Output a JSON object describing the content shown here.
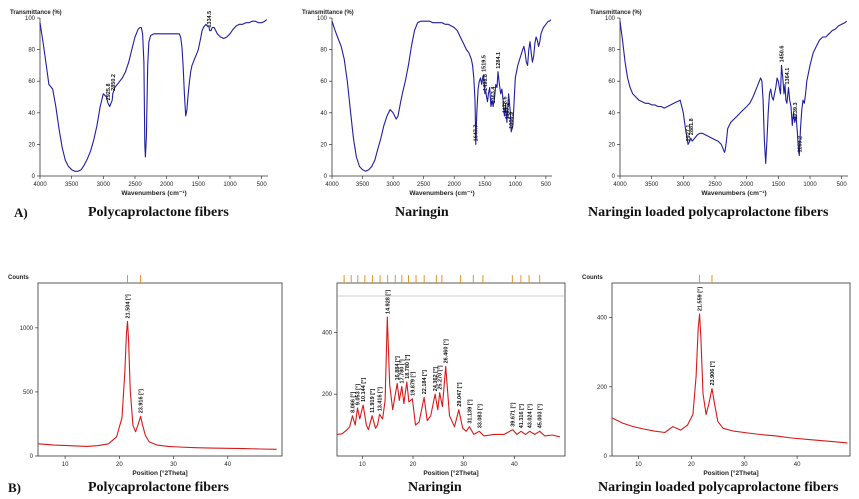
{
  "figure": {
    "panel_a_label": "A)",
    "panel_b_label": "B)"
  },
  "chart_data": [
    {
      "type": "line",
      "caption": "Polycaprolactone fibers",
      "xlabel": "Wavenumbers (cm⁻¹)",
      "ylabel": "Transmittance (%)",
      "xlim": [
        4000,
        400
      ],
      "ylim": [
        0,
        100
      ],
      "xticks": [
        4000,
        3500,
        3000,
        2500,
        2000,
        1500,
        1000,
        500
      ],
      "yticks": [
        0,
        20,
        40,
        60,
        80,
        100
      ],
      "color": "#1f1f9e",
      "x": [
        4000,
        3950,
        3900,
        3860,
        3800,
        3750,
        3700,
        3650,
        3600,
        3550,
        3500,
        3450,
        3400,
        3350,
        3300,
        3250,
        3200,
        3150,
        3100,
        3050,
        3000,
        2950,
        2925.8,
        2900,
        2860,
        2850.2,
        2820,
        2780,
        2740,
        2700,
        2650,
        2600,
        2550,
        2500,
        2450,
        2420,
        2400,
        2380,
        2360,
        2345,
        2335,
        2320,
        2300,
        2280,
        2250,
        2200,
        2150,
        2100,
        2050,
        2000,
        1950,
        1900,
        1850,
        1800,
        1780,
        1760,
        1740,
        1720,
        1700,
        1680,
        1660,
        1640,
        1620,
        1600,
        1580,
        1560,
        1540,
        1520,
        1500,
        1480,
        1460,
        1440,
        1420,
        1400,
        1380,
        1360,
        1334.5,
        1320,
        1300,
        1280,
        1250,
        1200,
        1150,
        1100,
        1050,
        1000,
        950,
        900,
        850,
        800,
        750,
        700,
        650,
        600,
        550,
        500,
        450,
        420
      ],
      "y": [
        97,
        84,
        70,
        58,
        55,
        44,
        30,
        18,
        10,
        6,
        4,
        3,
        3,
        4,
        7,
        11,
        16,
        23,
        32,
        44,
        52,
        50,
        46,
        44,
        48,
        52,
        56,
        58,
        60,
        62,
        66,
        72,
        80,
        88,
        93,
        94,
        94,
        90,
        72,
        20,
        12,
        25,
        70,
        85,
        89,
        90,
        90,
        90,
        90,
        90,
        90,
        90,
        90,
        90,
        88,
        82,
        70,
        52,
        38,
        42,
        52,
        60,
        66,
        70,
        72,
        74,
        76,
        78,
        80,
        84,
        88,
        92,
        94,
        95,
        96,
        95,
        95,
        92,
        92,
        94,
        94,
        90,
        88,
        87,
        88,
        90,
        93,
        95,
        96,
        96,
        97,
        97,
        98,
        98,
        97,
        97,
        98,
        99
      ],
      "annotations": [
        {
          "x": 2925.8,
          "y": 46,
          "text": "2925.8"
        },
        {
          "x": 2850.2,
          "y": 52,
          "text": "2850.2"
        },
        {
          "x": 1334.5,
          "y": 92,
          "text": "1334.5"
        }
      ]
    },
    {
      "type": "line",
      "caption": "Naringin",
      "xlabel": "Wavenumbers (cm⁻¹)",
      "ylabel": "Transmittance (%)",
      "xlim": [
        4000,
        400
      ],
      "ylim": [
        0,
        100
      ],
      "xticks": [
        4000,
        3500,
        3000,
        2500,
        2000,
        1500,
        1000,
        500
      ],
      "yticks": [
        0,
        20,
        40,
        60,
        80,
        100
      ],
      "color": "#1f1f9e",
      "x": [
        4000,
        3950,
        3900,
        3850,
        3800,
        3750,
        3700,
        3650,
        3600,
        3550,
        3500,
        3450,
        3400,
        3350,
        3300,
        3250,
        3200,
        3150,
        3100,
        3050,
        3000,
        2950,
        2920,
        2900,
        2880,
        2850,
        2800,
        2750,
        2700,
        2650,
        2600,
        2550,
        2500,
        2450,
        2400,
        2350,
        2300,
        2250,
        2200,
        2150,
        2100,
        2050,
        2000,
        1950,
        1900,
        1850,
        1800,
        1760,
        1720,
        1700,
        1680,
        1660,
        1647.7,
        1630,
        1610,
        1590,
        1570,
        1550,
        1530,
        1519.5,
        1510,
        1498.8,
        1485,
        1470,
        1455,
        1440,
        1420,
        1400,
        1380,
        1363.4,
        1340,
        1320,
        1300,
        1284.1,
        1260,
        1240,
        1220,
        1200,
        1178.6,
        1160,
        1137.2,
        1110,
        1080,
        1066.9,
        1040,
        1000,
        960,
        920,
        880,
        860,
        840,
        820,
        800,
        780,
        760,
        740,
        720,
        700,
        680,
        660,
        640,
        620,
        600,
        580,
        560,
        540,
        520,
        500,
        480,
        460,
        440,
        420
      ],
      "y": [
        98,
        92,
        87,
        82,
        74,
        60,
        42,
        24,
        12,
        6,
        4,
        3,
        4,
        6,
        10,
        17,
        24,
        32,
        38,
        42,
        40,
        36,
        38,
        42,
        46,
        52,
        60,
        70,
        82,
        92,
        97,
        98,
        98,
        98,
        98,
        97,
        97,
        97,
        97,
        96,
        96,
        95,
        94,
        92,
        88,
        84,
        80,
        78,
        74,
        70,
        62,
        48,
        20,
        40,
        55,
        60,
        62,
        58,
        63,
        64,
        58,
        52,
        54,
        50,
        47,
        52,
        56,
        44,
        48,
        44,
        50,
        58,
        56,
        66,
        58,
        52,
        55,
        48,
        38,
        45,
        34,
        52,
        40,
        28,
        32,
        62,
        70,
        75,
        80,
        82,
        78,
        72,
        70,
        80,
        85,
        78,
        72,
        76,
        84,
        88,
        86,
        82,
        85,
        90,
        92,
        94,
        95,
        96,
        97,
        98,
        98,
        99
      ],
      "annotations": [
        {
          "x": 1647.7,
          "y": 20,
          "text": "1647.7"
        },
        {
          "x": 1519.5,
          "y": 64,
          "text": "1519.5"
        },
        {
          "x": 1498.8,
          "y": 52,
          "text": "1498.8"
        },
        {
          "x": 1363.4,
          "y": 44,
          "text": "1363.4"
        },
        {
          "x": 1284.1,
          "y": 66,
          "text": "1284.1"
        },
        {
          "x": 1178.6,
          "y": 38,
          "text": "1178.6"
        },
        {
          "x": 1137.2,
          "y": 34,
          "text": "1137.2"
        },
        {
          "x": 1066.9,
          "y": 28,
          "text": "1066.9"
        }
      ]
    },
    {
      "type": "line",
      "caption": "Naringin loaded polycaprolactone fibers",
      "xlabel": "Wavenumbers (cm⁻¹)",
      "ylabel": "Transmittance (%)",
      "xlim": [
        4000,
        400
      ],
      "ylim": [
        0,
        100
      ],
      "xticks": [
        4000,
        3500,
        3000,
        2500,
        2000,
        1500,
        1000,
        500
      ],
      "yticks": [
        0,
        20,
        40,
        60,
        80,
        100
      ],
      "color": "#1f1f9e",
      "x": [
        4000,
        3960,
        3920,
        3880,
        3840,
        3800,
        3750,
        3700,
        3650,
        3600,
        3550,
        3500,
        3450,
        3400,
        3350,
        3300,
        3250,
        3200,
        3150,
        3100,
        3050,
        3000,
        2960,
        2940,
        2927.1,
        2900,
        2881.8,
        2860,
        2820,
        2780,
        2740,
        2700,
        2650,
        2600,
        2550,
        2500,
        2450,
        2400,
        2370,
        2350,
        2340,
        2320,
        2300,
        2250,
        2200,
        2150,
        2100,
        2050,
        2000,
        1950,
        1900,
        1850,
        1800,
        1780,
        1760,
        1740,
        1720,
        1700,
        1680,
        1660,
        1640,
        1620,
        1600,
        1580,
        1560,
        1540,
        1520,
        1500,
        1480,
        1465,
        1450.6,
        1430,
        1410,
        1395,
        1380,
        1364.1,
        1340,
        1320,
        1300,
        1280,
        1260,
        1239.3,
        1220,
        1200,
        1180,
        1169.2,
        1150,
        1130,
        1110,
        1090,
        1070,
        1050,
        1000,
        950,
        900,
        850,
        800,
        750,
        700,
        650,
        600,
        550,
        500,
        450,
        420
      ],
      "y": [
        98,
        86,
        72,
        62,
        56,
        52,
        50,
        48,
        47,
        46,
        46,
        45,
        45,
        44,
        44,
        43,
        44,
        45,
        46,
        47,
        48,
        40,
        28,
        24,
        20,
        22,
        24,
        22,
        24,
        26,
        27,
        27,
        26,
        25,
        24,
        23,
        22,
        20,
        17,
        15,
        16,
        22,
        30,
        34,
        36,
        38,
        40,
        42,
        44,
        46,
        50,
        55,
        60,
        62,
        60,
        48,
        22,
        8,
        22,
        40,
        52,
        55,
        50,
        48,
        52,
        56,
        62,
        60,
        55,
        52,
        70,
        62,
        52,
        58,
        48,
        46,
        56,
        48,
        44,
        32,
        40,
        34,
        38,
        28,
        16,
        13,
        30,
        42,
        48,
        46,
        52,
        60,
        70,
        78,
        82,
        86,
        88,
        88,
        90,
        92,
        93,
        95,
        96,
        97,
        98
      ],
      "annotations": [
        {
          "x": 2927.1,
          "y": 20,
          "text": "2927.1"
        },
        {
          "x": 2881.8,
          "y": 24,
          "text": "2881.8"
        },
        {
          "x": 1450.6,
          "y": 70,
          "text": "1450.6"
        },
        {
          "x": 1364.1,
          "y": 56,
          "text": "1364.1"
        },
        {
          "x": 1239.3,
          "y": 34,
          "text": "1239.3"
        },
        {
          "x": 1169.2,
          "y": 13,
          "text": "1169.2"
        }
      ]
    },
    {
      "type": "line",
      "caption": "Polycaprolactone fibers",
      "ylabel": "Counts",
      "xlabel": "Position [°2Theta]",
      "xlim": [
        5,
        50
      ],
      "ylim": [
        0,
        1350
      ],
      "xticks": [
        10,
        20,
        30,
        40
      ],
      "yticks": [
        0,
        500,
        1000
      ],
      "color": "#d61a1a",
      "x": [
        5,
        8,
        11,
        14,
        16,
        18,
        19.5,
        20.5,
        21.0,
        21.3,
        21.504,
        21.7,
        22.0,
        22.5,
        23.0,
        23.5,
        23.916,
        24.3,
        24.8,
        25.5,
        27,
        29,
        31,
        34,
        37,
        40,
        43,
        46,
        49
      ],
      "y": [
        95,
        85,
        80,
        75,
        80,
        95,
        150,
        300,
        650,
        950,
        1050,
        900,
        520,
        240,
        190,
        250,
        310,
        240,
        160,
        110,
        85,
        75,
        70,
        65,
        62,
        60,
        58,
        55,
        52
      ],
      "peak_markers": [
        21.504,
        23.916
      ],
      "annotations": [
        {
          "x": 21.504,
          "y": 1050,
          "text": "21.504 [°]"
        },
        {
          "x": 23.916,
          "y": 310,
          "text": "23.916 [°]"
        }
      ]
    },
    {
      "type": "line",
      "caption": "Naringin",
      "xlabel": "Position [°2Theta]",
      "xlim": [
        5,
        50
      ],
      "ylim": [
        0,
        560
      ],
      "xticks": [
        10,
        20,
        30,
        40
      ],
      "yticks": [
        200,
        400
      ],
      "color": "#d61a1a",
      "x": [
        5,
        6,
        7,
        7.5,
        8.066,
        8.6,
        9.053,
        9.5,
        10.144,
        10.8,
        11.2,
        11.919,
        12.6,
        13.0,
        13.416,
        14.0,
        14.5,
        14.928,
        15.4,
        16.0,
        16.884,
        17.3,
        17.78,
        18.2,
        18.78,
        19.2,
        19.879,
        20.5,
        21.2,
        22.184,
        22.8,
        23.5,
        24.362,
        24.9,
        25.27,
        25.8,
        26.46,
        27.2,
        28.2,
        29.047,
        29.8,
        30.5,
        31.139,
        32.0,
        33.083,
        34.0,
        36.0,
        38.0,
        39.671,
        40.5,
        41.316,
        42.2,
        43.024,
        44.0,
        45.003,
        46.0,
        47.5,
        49
      ],
      "y": [
        70,
        72,
        85,
        95,
        130,
        100,
        155,
        120,
        165,
        100,
        85,
        130,
        90,
        100,
        135,
        120,
        180,
        450,
        230,
        150,
        235,
        180,
        225,
        170,
        240,
        175,
        185,
        100,
        110,
        190,
        115,
        130,
        200,
        150,
        205,
        160,
        290,
        130,
        95,
        150,
        90,
        80,
        95,
        70,
        80,
        65,
        70,
        70,
        85,
        70,
        80,
        70,
        80,
        70,
        80,
        65,
        68,
        62
      ],
      "peak_markers": [
        6.4,
        7.8,
        9.1,
        10.5,
        12.0,
        13.5,
        15.0,
        16.5,
        17.8,
        19.1,
        20.6,
        22.2,
        24.6,
        25.7,
        29.4,
        31.9,
        33.8,
        39.6,
        41.3,
        42.9,
        45.0
      ],
      "annotations": [
        {
          "x": 8.066,
          "y": 130,
          "text": "8.066 [°]"
        },
        {
          "x": 9.053,
          "y": 155,
          "text": "9.053 [°]"
        },
        {
          "x": 10.144,
          "y": 165,
          "text": "10.144 [°]"
        },
        {
          "x": 11.919,
          "y": 130,
          "text": "11.919 [°]"
        },
        {
          "x": 13.416,
          "y": 135,
          "text": "13.416 [°]"
        },
        {
          "x": 14.928,
          "y": 450,
          "text": "14.928 [°]"
        },
        {
          "x": 16.884,
          "y": 235,
          "text": "16.884 [°]"
        },
        {
          "x": 17.78,
          "y": 225,
          "text": "17.780 [°]"
        },
        {
          "x": 18.78,
          "y": 240,
          "text": "18.780 [°]"
        },
        {
          "x": 19.879,
          "y": 185,
          "text": "19.879 [°]"
        },
        {
          "x": 22.184,
          "y": 190,
          "text": "22.184 [°]"
        },
        {
          "x": 24.362,
          "y": 200,
          "text": "24.362 [°]"
        },
        {
          "x": 25.27,
          "y": 205,
          "text": "25.270 [°]"
        },
        {
          "x": 26.46,
          "y": 290,
          "text": "26.460 [°]"
        },
        {
          "x": 29.047,
          "y": 150,
          "text": "29.047 [°]"
        },
        {
          "x": 31.139,
          "y": 95,
          "text": "31.139 [°]"
        },
        {
          "x": 33.083,
          "y": 80,
          "text": "33.083 [°]"
        },
        {
          "x": 39.671,
          "y": 85,
          "text": "39.671 [°]"
        },
        {
          "x": 41.316,
          "y": 80,
          "text": "41.316 [°]"
        },
        {
          "x": 43.024,
          "y": 80,
          "text": "43.024 [°]"
        },
        {
          "x": 45.003,
          "y": 80,
          "text": "45.003 [°]"
        }
      ]
    },
    {
      "type": "line",
      "caption": "Naringin loaded polycaprolactone fibers",
      "ylabel": "Counts",
      "xlabel": "Position [°2Theta]",
      "xlim": [
        5,
        50
      ],
      "ylim": [
        0,
        500
      ],
      "xticks": [
        10,
        20,
        30,
        40
      ],
      "yticks": [
        0,
        200,
        400
      ],
      "color": "#d61a1a",
      "x": [
        5,
        7,
        9,
        11,
        13,
        15,
        16.5,
        18,
        19.3,
        20.3,
        20.9,
        21.3,
        21.559,
        21.8,
        22.2,
        22.8,
        23.3,
        23.906,
        24.4,
        25,
        26,
        28,
        30,
        33,
        36,
        39,
        42,
        45,
        48,
        49.5
      ],
      "y": [
        110,
        95,
        85,
        78,
        72,
        68,
        85,
        75,
        90,
        120,
        230,
        370,
        410,
        340,
        180,
        120,
        150,
        195,
        150,
        100,
        80,
        72,
        68,
        62,
        58,
        52,
        48,
        44,
        40,
        38
      ],
      "peak_markers": [
        21.559,
        23.906
      ],
      "annotations": [
        {
          "x": 21.559,
          "y": 410,
          "text": "21.559 [°]"
        },
        {
          "x": 23.906,
          "y": 195,
          "text": "23.906 [°]"
        }
      ]
    }
  ]
}
